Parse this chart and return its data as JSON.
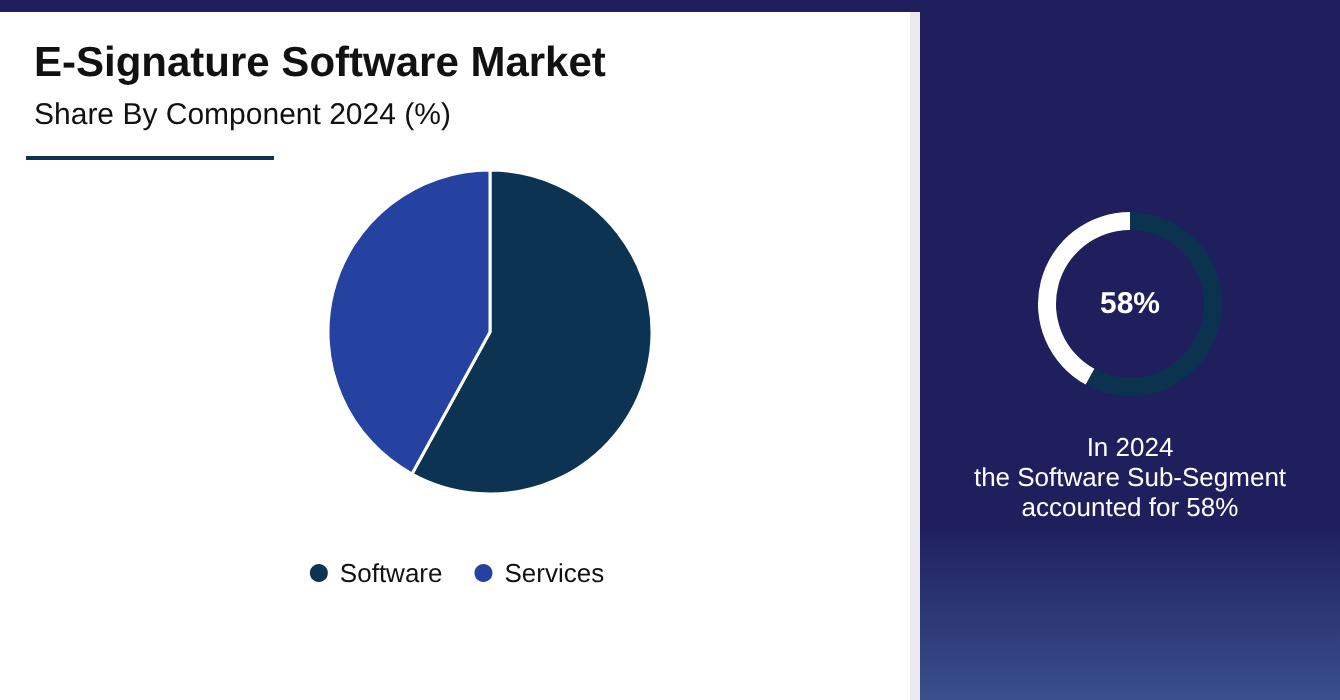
{
  "chart_data": [
    {
      "type": "pie",
      "title": "E-Signature Software Market",
      "subtitle": "Share By Component 2024 (%)",
      "categories": [
        "Software",
        "Services"
      ],
      "values": [
        58,
        42
      ],
      "colors": [
        "#0d3352",
        "#2542a0"
      ],
      "legend": "bottom"
    },
    {
      "type": "donut",
      "categories": [
        null,
        null
      ],
      "values": [
        58,
        42
      ],
      "colors": [
        "#0b3350",
        "#ffffff"
      ],
      "annotations": [
        "58%",
        "In 2024\nthe Software Sub-Segment\naccounted for 58%"
      ]
    }
  ]
}
